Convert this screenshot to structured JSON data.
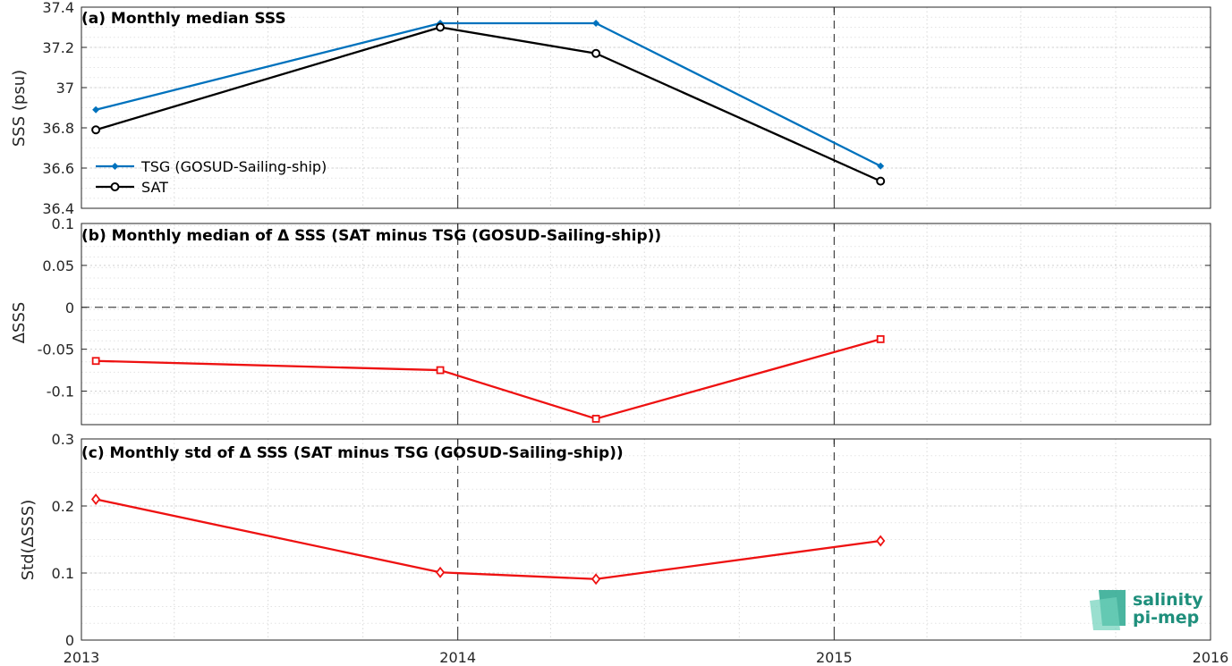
{
  "chart_data": [
    {
      "type": "line",
      "title": "(a) Monthly median SSS",
      "ylabel": "SSS (psu)",
      "xlim": [
        "2013-01-01",
        "2016-01-01"
      ],
      "ylim": [
        36.4,
        37.4
      ],
      "yticks": [
        36.4,
        36.6,
        36.8,
        37.0,
        37.2,
        37.4
      ],
      "ytick_labels": [
        "36.4",
        "36.6",
        "36.8",
        "37",
        "37.2",
        "37.4"
      ],
      "grid": true,
      "legend_position": "left",
      "series": [
        {
          "name": "TSG (GOSUD-Sailing-ship)",
          "color": "#0072bd",
          "marker": "filled-diamond",
          "x": [
            "2013-01-15",
            "2013-12-15",
            "2014-05-15",
            "2015-02-15"
          ],
          "y": [
            36.89,
            37.32,
            37.32,
            36.61
          ]
        },
        {
          "name": "SAT",
          "color": "#000000",
          "marker": "open-circle",
          "x": [
            "2013-01-15",
            "2013-12-15",
            "2014-05-15",
            "2015-02-15"
          ],
          "y": [
            36.79,
            37.3,
            37.17,
            36.535
          ]
        }
      ]
    },
    {
      "type": "line",
      "title": "(b) Monthly median of Δ SSS (SAT minus TSG (GOSUD-Sailing-ship))",
      "ylabel": "ΔSSS",
      "xlim": [
        "2013-01-01",
        "2016-01-01"
      ],
      "ylim": [
        -0.14,
        0.1
      ],
      "yticks": [
        -0.1,
        -0.05,
        0,
        0.05,
        0.1
      ],
      "ytick_labels": [
        "-0.1",
        "-0.05",
        "0",
        "0.05",
        "0.1"
      ],
      "grid": true,
      "zero_line": true,
      "series": [
        {
          "color": "#ee1111",
          "marker": "open-square",
          "x": [
            "2013-01-15",
            "2013-12-15",
            "2014-05-15",
            "2015-02-15"
          ],
          "y": [
            -0.064,
            -0.075,
            -0.133,
            -0.038
          ]
        }
      ]
    },
    {
      "type": "line",
      "title": "(c) Monthly std of Δ SSS (SAT minus TSG (GOSUD-Sailing-ship))",
      "ylabel": "Std(ΔSSS)",
      "xlim": [
        "2013-01-01",
        "2016-01-01"
      ],
      "ylim": [
        0,
        0.3
      ],
      "yticks": [
        0,
        0.1,
        0.2,
        0.3
      ],
      "ytick_labels": [
        "0",
        "0.1",
        "0.2",
        "0.3"
      ],
      "grid": true,
      "series": [
        {
          "color": "#ee1111",
          "marker": "open-diamond",
          "x": [
            "2013-01-15",
            "2013-12-15",
            "2014-05-15",
            "2015-02-15"
          ],
          "y": [
            0.21,
            0.101,
            0.091,
            0.148
          ]
        }
      ]
    }
  ],
  "x_axis": {
    "tick_labels": [
      "2013",
      "2014",
      "2015",
      "2016"
    ],
    "year_ticks": [
      2013,
      2014,
      2015,
      2016
    ]
  },
  "logo": {
    "line1": "salinity",
    "line2": "pi-mep",
    "color": "#1f8f7c"
  }
}
